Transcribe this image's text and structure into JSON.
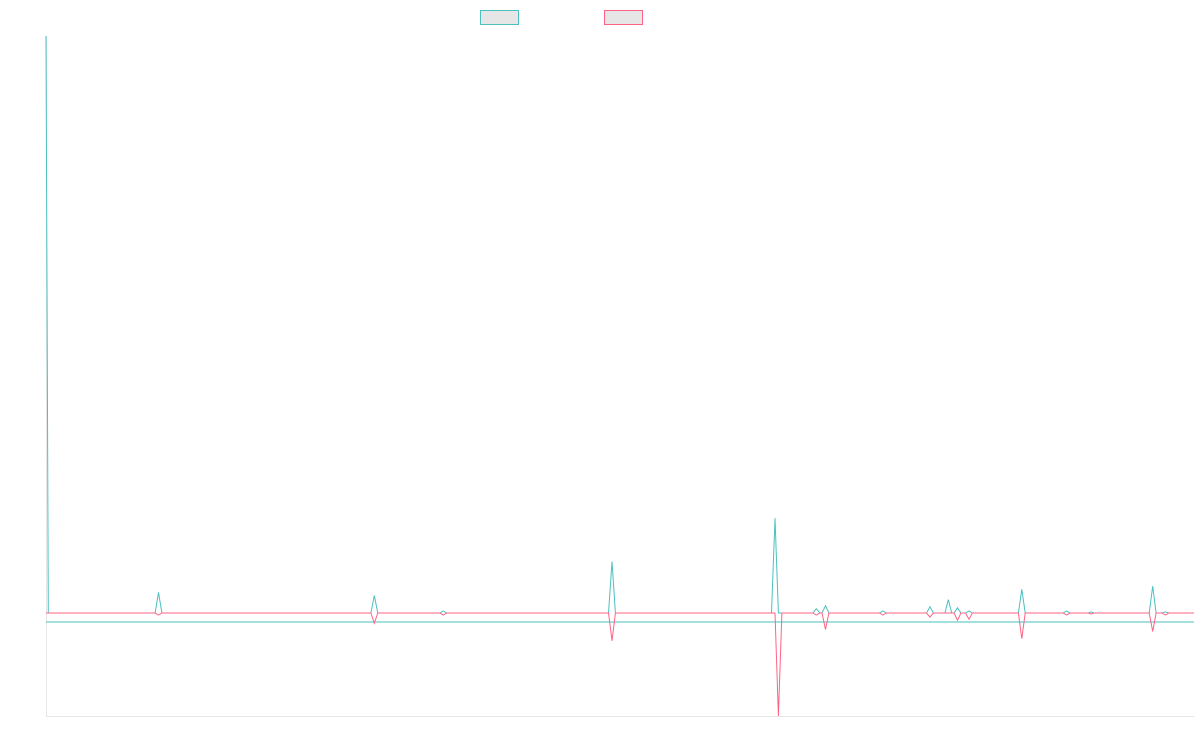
{
  "chart_data": {
    "type": "line",
    "title": "",
    "xlabel": "",
    "ylabel": "",
    "x_range": [
      0,
      100
    ],
    "y_range": [
      -1,
      5.6
    ],
    "grid": false,
    "legend": "top-center",
    "series": [
      {
        "color": "#4bc0c0",
        "points": [
          [
            0,
            5.6
          ],
          [
            0.2,
            0
          ],
          [
            9.5,
            0
          ],
          [
            9.8,
            0.2
          ],
          [
            10.1,
            0
          ],
          [
            28.3,
            0
          ],
          [
            28.6,
            0.17
          ],
          [
            28.9,
            0
          ],
          [
            34.3,
            0
          ],
          [
            34.6,
            0.02
          ],
          [
            34.9,
            0
          ],
          [
            49.0,
            0
          ],
          [
            49.3,
            0.5
          ],
          [
            49.6,
            0
          ],
          [
            63.2,
            0
          ],
          [
            63.5,
            0.92
          ],
          [
            63.8,
            0
          ],
          [
            66.8,
            0
          ],
          [
            67.1,
            0.04
          ],
          [
            67.4,
            0
          ],
          [
            67.6,
            0
          ],
          [
            67.9,
            0.07
          ],
          [
            68.2,
            0
          ],
          [
            72.6,
            0
          ],
          [
            72.9,
            0.02
          ],
          [
            73.2,
            0
          ],
          [
            76.7,
            0
          ],
          [
            77.0,
            0.06
          ],
          [
            77.3,
            0
          ],
          [
            78.3,
            0
          ],
          [
            78.6,
            0.13
          ],
          [
            78.9,
            0
          ],
          [
            79.1,
            0
          ],
          [
            79.4,
            0.05
          ],
          [
            79.7,
            0
          ],
          [
            80.1,
            0
          ],
          [
            80.4,
            0.02
          ],
          [
            80.7,
            0
          ],
          [
            84.7,
            0
          ],
          [
            85.0,
            0.23
          ],
          [
            85.3,
            0
          ],
          [
            88.6,
            0
          ],
          [
            88.9,
            0.02
          ],
          [
            89.2,
            0
          ],
          [
            90.8,
            0
          ],
          [
            91.0,
            0.01
          ],
          [
            91.3,
            0
          ],
          [
            96.1,
            0
          ],
          [
            96.4,
            0.26
          ],
          [
            96.7,
            0
          ],
          [
            97.2,
            0
          ],
          [
            97.5,
            0.01
          ],
          [
            97.8,
            0
          ],
          [
            100,
            0
          ]
        ]
      },
      {
        "color": "#ff6384",
        "points": [
          [
            0,
            0
          ],
          [
            9.5,
            0
          ],
          [
            9.8,
            -0.02
          ],
          [
            10.1,
            0
          ],
          [
            28.3,
            0
          ],
          [
            28.6,
            -0.1
          ],
          [
            28.9,
            0
          ],
          [
            34.3,
            0
          ],
          [
            34.6,
            -0.02
          ],
          [
            34.9,
            0
          ],
          [
            49.0,
            0
          ],
          [
            49.3,
            -0.27
          ],
          [
            49.6,
            0
          ],
          [
            63.5,
            0
          ],
          [
            63.8,
            -1.0
          ],
          [
            64.1,
            0
          ],
          [
            66.8,
            0
          ],
          [
            67.1,
            -0.02
          ],
          [
            67.4,
            0
          ],
          [
            67.6,
            0
          ],
          [
            67.9,
            -0.16
          ],
          [
            68.2,
            0
          ],
          [
            72.6,
            0
          ],
          [
            72.9,
            -0.02
          ],
          [
            73.2,
            0
          ],
          [
            76.7,
            0
          ],
          [
            77.0,
            -0.04
          ],
          [
            77.3,
            0
          ],
          [
            79.1,
            0
          ],
          [
            79.4,
            -0.07
          ],
          [
            79.7,
            0
          ],
          [
            80.1,
            0
          ],
          [
            80.4,
            -0.06
          ],
          [
            80.7,
            0
          ],
          [
            84.7,
            0
          ],
          [
            85.0,
            -0.25
          ],
          [
            85.3,
            0
          ],
          [
            88.6,
            0
          ],
          [
            88.9,
            -0.02
          ],
          [
            89.2,
            0
          ],
          [
            90.8,
            0
          ],
          [
            91.0,
            -0.01
          ],
          [
            91.3,
            0
          ],
          [
            96.1,
            0
          ],
          [
            96.4,
            -0.18
          ],
          [
            96.7,
            0
          ],
          [
            97.2,
            0
          ],
          [
            97.5,
            -0.02
          ],
          [
            97.8,
            0
          ],
          [
            100,
            0
          ]
        ]
      }
    ]
  }
}
